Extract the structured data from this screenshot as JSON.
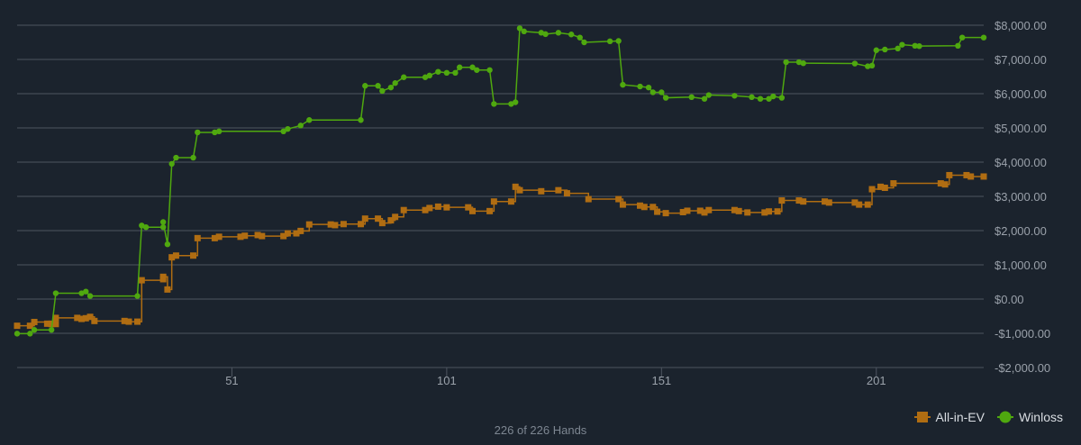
{
  "colors": {
    "background": "#1b232d",
    "grid": "#4d5560",
    "axis_text": "#9aa1aa",
    "ev": "#b06d12",
    "winloss": "#4fa80f"
  },
  "footer": {
    "hands_label": "226 of 226 Hands"
  },
  "chart_data": {
    "type": "line",
    "x_ticks": [
      51,
      101,
      151,
      201
    ],
    "x_tick_labels": [
      "51",
      "101",
      "151",
      "201"
    ],
    "xlim": [
      1,
      226
    ],
    "y_ticks": [
      -2000,
      -1000,
      0,
      1000,
      2000,
      3000,
      4000,
      5000,
      6000,
      7000,
      8000
    ],
    "y_tick_labels": [
      "-$2,000.00",
      "-$1,000.00",
      "$0.00",
      "$1,000.00",
      "$2,000.00",
      "$3,000.00",
      "$4,000.00",
      "$5,000.00",
      "$6,000.00",
      "$7,000.00",
      "$8,000.00"
    ],
    "ylim": [
      -2000,
      8000
    ],
    "grid": true,
    "legend_position": "bottom-right",
    "series": [
      {
        "name": "All-in-EV",
        "color": "#b06d12",
        "marker": "square",
        "step": true,
        "points": [
          [
            1,
            -780
          ],
          [
            4,
            -780
          ],
          [
            5,
            -670
          ],
          [
            8,
            -720
          ],
          [
            9,
            -720
          ],
          [
            10,
            -730
          ],
          [
            9,
            -730
          ],
          [
            10,
            -550
          ],
          [
            15,
            -550
          ],
          [
            16,
            -580
          ],
          [
            17,
            -560
          ],
          [
            18,
            -520
          ],
          [
            19,
            -640
          ],
          [
            26,
            -640
          ],
          [
            27,
            -660
          ],
          [
            29,
            -660
          ],
          [
            30,
            550
          ],
          [
            35,
            580
          ],
          [
            35,
            650
          ],
          [
            36,
            280
          ],
          [
            37,
            1220
          ],
          [
            38,
            1270
          ],
          [
            42,
            1270
          ],
          [
            43,
            1780
          ],
          [
            47,
            1780
          ],
          [
            48,
            1820
          ],
          [
            53,
            1820
          ],
          [
            54,
            1850
          ],
          [
            57,
            1870
          ],
          [
            58,
            1840
          ],
          [
            63,
            1840
          ],
          [
            64,
            1920
          ],
          [
            66,
            1920
          ],
          [
            67,
            1990
          ],
          [
            69,
            2180
          ],
          [
            74,
            2180
          ],
          [
            75,
            2160
          ],
          [
            77,
            2190
          ],
          [
            81,
            2190
          ],
          [
            82,
            2350
          ],
          [
            85,
            2350
          ],
          [
            86,
            2220
          ],
          [
            88,
            2300
          ],
          [
            89,
            2400
          ],
          [
            91,
            2600
          ],
          [
            96,
            2600
          ],
          [
            97,
            2660
          ],
          [
            99,
            2700
          ],
          [
            101,
            2680
          ],
          [
            106,
            2680
          ],
          [
            107,
            2570
          ],
          [
            111,
            2570
          ],
          [
            112,
            2850
          ],
          [
            116,
            2850
          ],
          [
            117,
            3280
          ],
          [
            118,
            3180
          ],
          [
            123,
            3150
          ],
          [
            127,
            3180
          ],
          [
            129,
            3090
          ],
          [
            134,
            2920
          ],
          [
            141,
            2920
          ],
          [
            142,
            2760
          ],
          [
            146,
            2730
          ],
          [
            147,
            2690
          ],
          [
            149,
            2690
          ],
          [
            150,
            2550
          ],
          [
            152,
            2510
          ],
          [
            156,
            2540
          ],
          [
            157,
            2580
          ],
          [
            160,
            2580
          ],
          [
            161,
            2530
          ],
          [
            162,
            2600
          ],
          [
            168,
            2600
          ],
          [
            169,
            2570
          ],
          [
            171,
            2530
          ],
          [
            175,
            2530
          ],
          [
            176,
            2560
          ],
          [
            178,
            2560
          ],
          [
            179,
            2880
          ],
          [
            183,
            2880
          ],
          [
            184,
            2850
          ],
          [
            189,
            2850
          ],
          [
            190,
            2820
          ],
          [
            196,
            2820
          ],
          [
            197,
            2760
          ],
          [
            199,
            2760
          ],
          [
            200,
            3210
          ],
          [
            202,
            3280
          ],
          [
            203,
            3250
          ],
          [
            205,
            3380
          ],
          [
            216,
            3380
          ],
          [
            217,
            3350
          ],
          [
            218,
            3620
          ],
          [
            222,
            3620
          ],
          [
            223,
            3580
          ],
          [
            226,
            3580
          ]
        ]
      },
      {
        "name": "Winloss",
        "color": "#4fa80f",
        "marker": "circle",
        "step": false,
        "points": [
          [
            1,
            -1010
          ],
          [
            4,
            -1010
          ],
          [
            5,
            -900
          ],
          [
            9,
            -900
          ],
          [
            10,
            170
          ],
          [
            16,
            170
          ],
          [
            17,
            220
          ],
          [
            18,
            90
          ],
          [
            29,
            90
          ],
          [
            30,
            2150
          ],
          [
            31,
            2100
          ],
          [
            35,
            2100
          ],
          [
            35,
            2250
          ],
          [
            36,
            1600
          ],
          [
            37,
            3950
          ],
          [
            38,
            4130
          ],
          [
            42,
            4130
          ],
          [
            43,
            4870
          ],
          [
            47,
            4870
          ],
          [
            48,
            4900
          ],
          [
            63,
            4900
          ],
          [
            64,
            4970
          ],
          [
            67,
            5070
          ],
          [
            69,
            5230
          ],
          [
            81,
            5230
          ],
          [
            82,
            6230
          ],
          [
            85,
            6230
          ],
          [
            86,
            6080
          ],
          [
            88,
            6180
          ],
          [
            89,
            6310
          ],
          [
            91,
            6480
          ],
          [
            96,
            6480
          ],
          [
            97,
            6530
          ],
          [
            99,
            6640
          ],
          [
            101,
            6610
          ],
          [
            103,
            6610
          ],
          [
            104,
            6770
          ],
          [
            107,
            6770
          ],
          [
            108,
            6690
          ],
          [
            111,
            6690
          ],
          [
            112,
            5700
          ],
          [
            116,
            5700
          ],
          [
            117,
            5750
          ],
          [
            118,
            7910
          ],
          [
            119,
            7820
          ],
          [
            123,
            7780
          ],
          [
            124,
            7740
          ],
          [
            127,
            7780
          ],
          [
            130,
            7730
          ],
          [
            132,
            7640
          ],
          [
            133,
            7500
          ],
          [
            139,
            7530
          ],
          [
            141,
            7540
          ],
          [
            142,
            6260
          ],
          [
            146,
            6210
          ],
          [
            148,
            6180
          ],
          [
            149,
            6040
          ],
          [
            151,
            6040
          ],
          [
            152,
            5880
          ],
          [
            158,
            5900
          ],
          [
            161,
            5850
          ],
          [
            162,
            5960
          ],
          [
            168,
            5940
          ],
          [
            172,
            5900
          ],
          [
            174,
            5850
          ],
          [
            176,
            5850
          ],
          [
            177,
            5920
          ],
          [
            179,
            5880
          ],
          [
            180,
            6920
          ],
          [
            183,
            6920
          ],
          [
            184,
            6890
          ],
          [
            196,
            6880
          ],
          [
            199,
            6800
          ],
          [
            200,
            6820
          ],
          [
            201,
            7270
          ],
          [
            203,
            7290
          ],
          [
            206,
            7320
          ],
          [
            207,
            7430
          ],
          [
            210,
            7400
          ],
          [
            211,
            7390
          ],
          [
            220,
            7400
          ],
          [
            221,
            7640
          ],
          [
            226,
            7640
          ]
        ]
      }
    ]
  }
}
